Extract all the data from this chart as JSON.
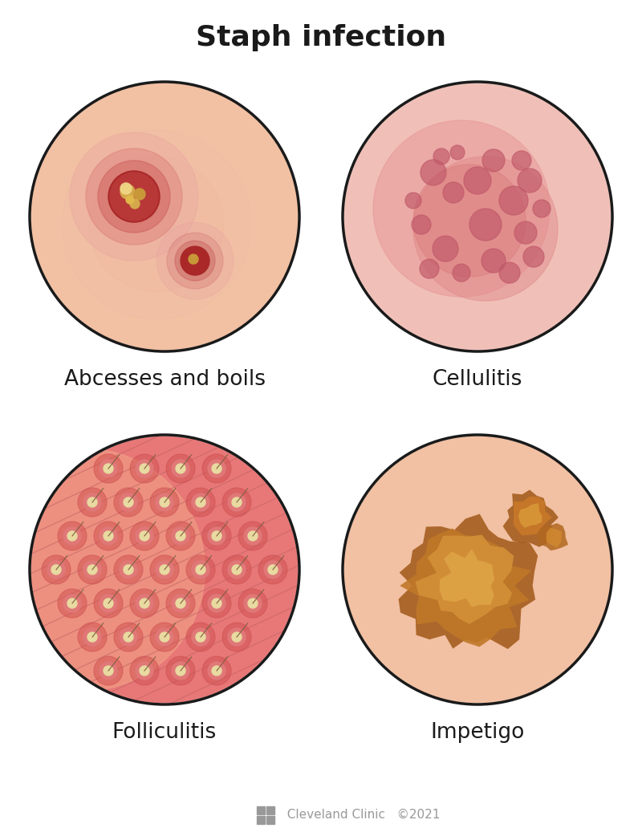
{
  "title": "Staph infection",
  "title_fontsize": 26,
  "title_fontweight": "bold",
  "background_color": "#ffffff",
  "circle_edge_color": "#1a1a1a",
  "circle_linewidth": 2.5,
  "labels": [
    "Abcesses and boils",
    "Cellulitis",
    "Folliculitis",
    "Impetigo"
  ],
  "label_fontsize": 19,
  "footer_text": "  Cleveland Clinic   ©2021",
  "footer_color": "#999999",
  "footer_fontsize": 11
}
